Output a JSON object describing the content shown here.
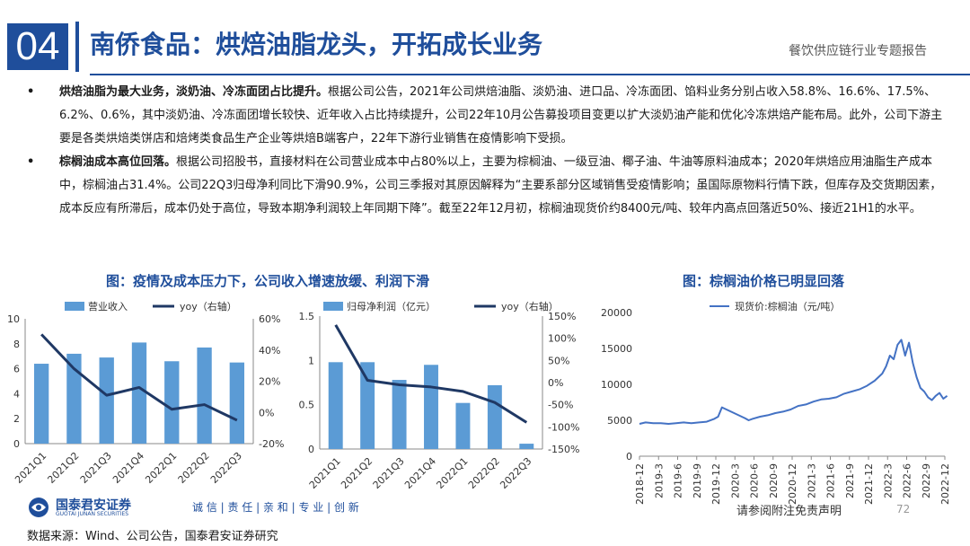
{
  "header": {
    "number": "04",
    "title": "南侨食品：烘焙油脂龙头，开拓成长业务",
    "report": "餐饮供应链行业专题报告"
  },
  "bullets": [
    {
      "mark": "•",
      "lead": "烘焙油脂为最大业务，淡奶油、冷冻面团占比提升。",
      "body": "根据公司公告，2021年公司烘焙油脂、淡奶油、进口品、冷冻面团、馅料业务分别占收入58.8%、16.6%、17.5%、6.2%、0.6%，其中淡奶油、冷冻面团增长较快、近年收入占比持续提升，公司22年10月公告募投项目变更以扩大淡奶油产能和优化冷冻烘焙产能布局。此外，公司下游主要是各类烘焙类饼店和焙烤类食品生产企业等烘焙B端客户，22年下游行业销售在疫情影响下受损。"
    },
    {
      "mark": "•",
      "lead": "棕榈油成本高位回落。",
      "body": "根据公司招股书，直接材料在公司营业成本中占80%以上，主要为棕榈油、一级豆油、椰子油、牛油等原料油成本；2020年烘焙应用油脂生产成本中，棕榈油占31.4%。公司22Q3归母净利同比下滑90.9%，公司三季报对其原因解释为“主要系部分区域销售受疫情影响；虽国际原物料行情下跌，但库存及交货期因素，成本反应有所滞后，成本仍处于高位，导致本期净利润较上年同期下降”。截至22年12月初，棕榈油现货价约8400元/吨、较年内高点回落近50%、接近21H1的水平。"
    }
  ],
  "left_chart_title": "图：疫情及成本压力下，公司收入增速放缓、利润下滑",
  "right_chart_title": "图：棕榈油价格已明显回落",
  "chart_data": [
    {
      "type": "bar",
      "categories": [
        "2021Q1",
        "2021Q2",
        "2021Q3",
        "2021Q4",
        "2022Q1",
        "2022Q2",
        "2022Q3"
      ],
      "series": [
        {
          "name": "营业收入",
          "kind": "bar",
          "axis": "left",
          "values": [
            6.4,
            7.2,
            6.9,
            8.1,
            6.6,
            7.7,
            6.5
          ]
        },
        {
          "name": "yoy（右轴）",
          "kind": "line",
          "axis": "right",
          "values": [
            50,
            28,
            11,
            16,
            2,
            5,
            -5
          ]
        }
      ],
      "yticks_left": [
        "0",
        "2",
        "4",
        "6",
        "8",
        "10"
      ],
      "ylim_left": [
        0,
        10
      ],
      "yticks_right": [
        "-20%",
        "0%",
        "20%",
        "40%",
        "60%"
      ],
      "ylim_right": [
        -20,
        60
      ],
      "colors": {
        "bar": "#5b9bd5",
        "line": "#1f3864"
      }
    },
    {
      "type": "bar",
      "categories": [
        "2021Q1",
        "2021Q2",
        "2021Q3",
        "2021Q4",
        "2022Q1",
        "2022Q2",
        "2022Q3"
      ],
      "series": [
        {
          "name": "归母净利润（亿元）",
          "kind": "bar",
          "axis": "left",
          "values": [
            0.98,
            0.98,
            0.78,
            0.95,
            0.52,
            0.72,
            0.06
          ]
        },
        {
          "name": "yoy（右轴）",
          "kind": "line",
          "axis": "right",
          "values": [
            130,
            5,
            -5,
            -10,
            -20,
            -45,
            -90
          ]
        }
      ],
      "yticks_left": [
        "0",
        "0.5",
        "1",
        "1.5"
      ],
      "ylim_left": [
        0,
        1.5
      ],
      "yticks_right": [
        "-150%",
        "-100%",
        "-50%",
        "0%",
        "50%",
        "100%",
        "150%"
      ],
      "ylim_right": [
        -150,
        150
      ],
      "colors": {
        "bar": "#5b9bd5",
        "line": "#1f3864"
      }
    },
    {
      "type": "line",
      "series": [
        {
          "name": "现货价:棕榈油（元/吨）",
          "x": [
            2018.92,
            2019.0,
            2019.1,
            2019.2,
            2019.3,
            2019.4,
            2019.5,
            2019.6,
            2019.7,
            2019.8,
            2019.9,
            2019.95,
            2020.0,
            2020.1,
            2020.2,
            2020.3,
            2020.35,
            2020.4,
            2020.5,
            2020.6,
            2020.7,
            2020.8,
            2020.9,
            2021.0,
            2021.1,
            2021.2,
            2021.3,
            2021.4,
            2021.5,
            2021.6,
            2021.7,
            2021.8,
            2021.9,
            2022.0,
            2022.1,
            2022.15,
            2022.2,
            2022.25,
            2022.3,
            2022.35,
            2022.4,
            2022.45,
            2022.5,
            2022.55,
            2022.6,
            2022.65,
            2022.7,
            2022.75,
            2022.8,
            2022.85,
            2022.9,
            2022.95
          ],
          "values": [
            4500,
            4700,
            4600,
            4600,
            4500,
            4600,
            4700,
            4600,
            4700,
            4800,
            5200,
            5500,
            6800,
            6300,
            5800,
            5300,
            5000,
            5200,
            5500,
            5700,
            6000,
            6200,
            6500,
            7000,
            7200,
            7600,
            7900,
            8000,
            8200,
            8700,
            9000,
            9300,
            9800,
            10500,
            11500,
            12500,
            14000,
            13500,
            15500,
            16200,
            14000,
            15800,
            13000,
            11000,
            9500,
            9000,
            8200,
            7800,
            8400,
            8800,
            8000,
            8400
          ]
        }
      ],
      "xticks": [
        "2018-12",
        "2019-3",
        "2019-6",
        "2019-9",
        "2019-12",
        "2020-3",
        "2020-6",
        "2020-9",
        "2020-12",
        "2021-3",
        "2021-6",
        "2021-9",
        "2021-12",
        "2022-3",
        "2022-6",
        "2022-9",
        "2022-12"
      ],
      "xlim": [
        2018.92,
        2022.92
      ],
      "yticks": [
        "0",
        "5000",
        "10000",
        "15000",
        "20000"
      ],
      "ylim": [
        0,
        20000
      ],
      "colors": {
        "line": "#4472c4"
      }
    }
  ],
  "footer": {
    "logo_cn": "国泰君安证券",
    "logo_en": "GUOTAI JUNAN SECURITIES",
    "slogan": "诚 信 | 责 任 | 亲 和 | 专 业 | 创 新",
    "source": "数据来源：Wind、公司公告，国泰君安证券研究",
    "disclaimer": "请参阅附注免责声明",
    "page": "72"
  }
}
